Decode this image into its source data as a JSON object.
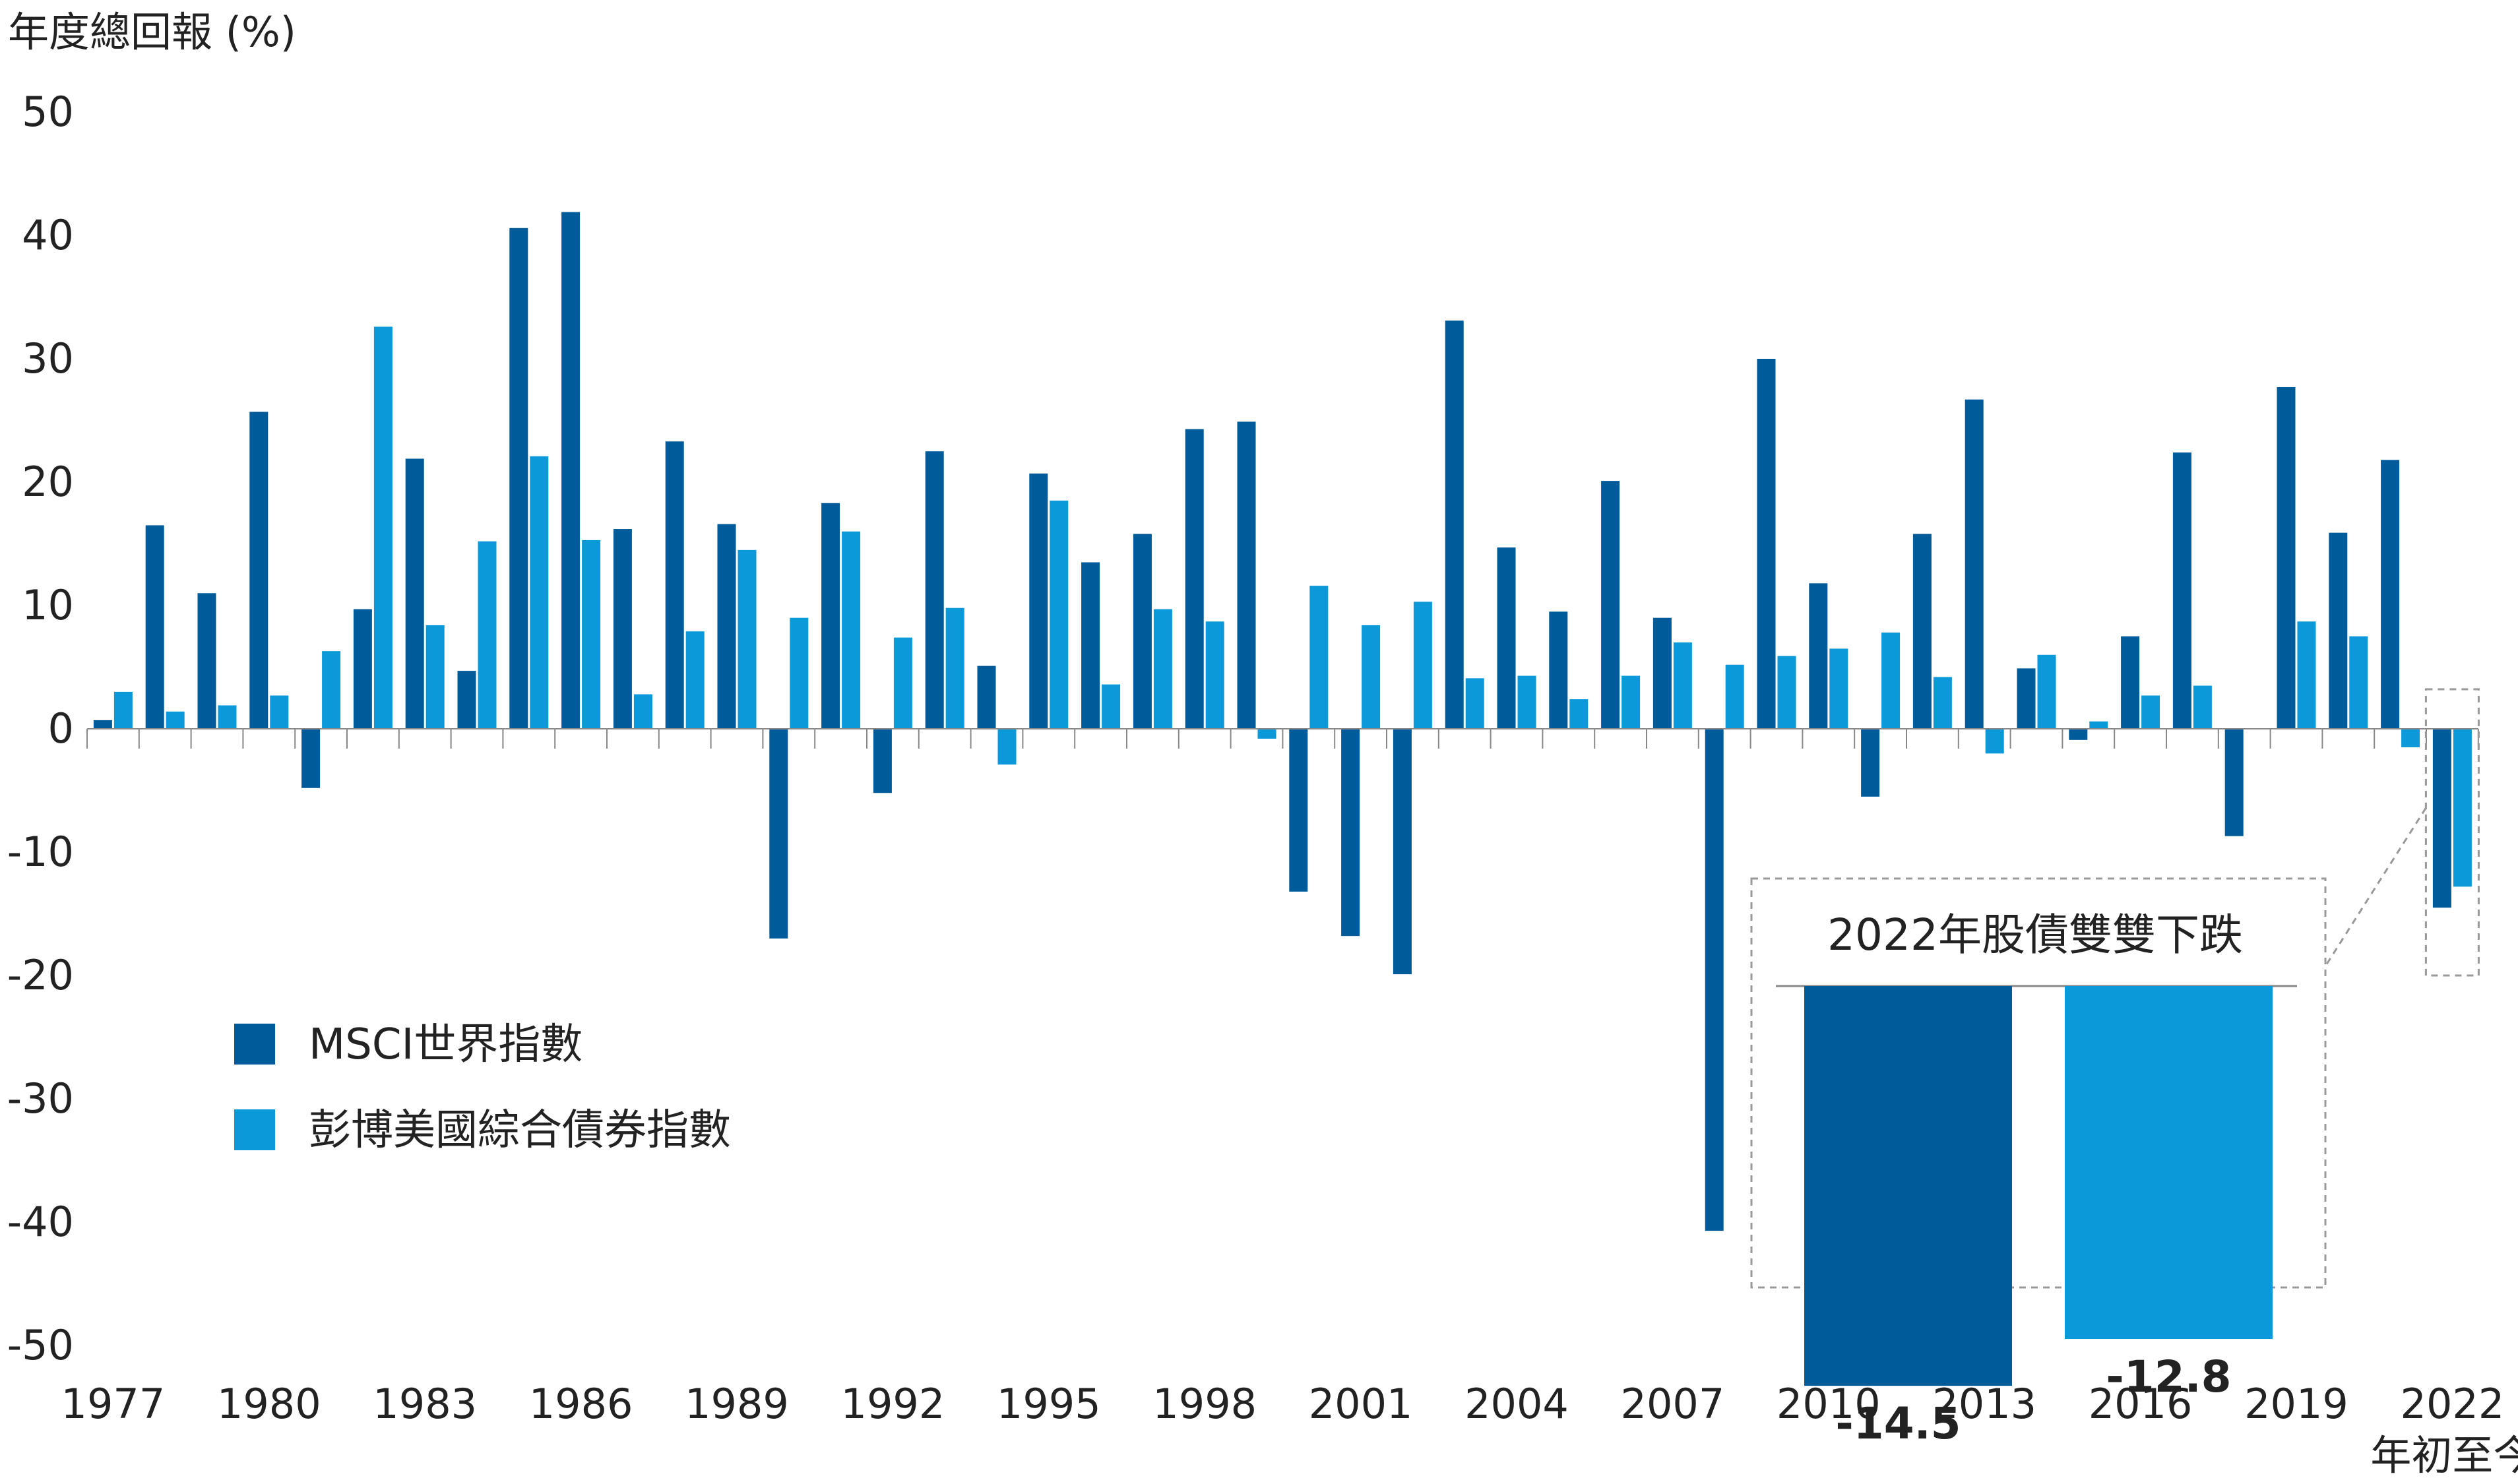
{
  "chart_data": {
    "type": "bar",
    "ylabel": "年度總回報 (%)",
    "ylim": [
      -50,
      50
    ],
    "yticks": [
      "50",
      "40",
      "30",
      "20",
      "10",
      "0",
      "-10",
      "-20",
      "-30",
      "-40",
      "-50"
    ],
    "x_tick_labels": [
      "1977",
      "1980",
      "1983",
      "1986",
      "1989",
      "1992",
      "1995",
      "1998",
      "2001",
      "2004",
      "2007",
      "2010",
      "2013",
      "2016",
      "2019",
      "2022"
    ],
    "ytd_label": "年初至今",
    "categories": [
      "1977",
      "1978",
      "1979",
      "1980",
      "1981",
      "1982",
      "1983",
      "1984",
      "1985",
      "1986",
      "1987",
      "1988",
      "1989",
      "1990",
      "1991",
      "1992",
      "1993",
      "1994",
      "1995",
      "1996",
      "1997",
      "1998",
      "1999",
      "2000",
      "2001",
      "2002",
      "2003",
      "2004",
      "2005",
      "2006",
      "2007",
      "2008",
      "2009",
      "2010",
      "2011",
      "2012",
      "2013",
      "2014",
      "2015",
      "2016",
      "2017",
      "2018",
      "2019",
      "2020",
      "2021",
      "2022"
    ],
    "series": [
      {
        "name": "MSCI世界指數",
        "color": "#005b9a",
        "values": [
          0.7,
          16.5,
          11.0,
          25.7,
          -4.8,
          9.7,
          21.9,
          4.7,
          40.6,
          41.9,
          16.2,
          23.3,
          16.6,
          -17.0,
          18.3,
          -5.2,
          22.5,
          5.1,
          20.7,
          13.5,
          15.8,
          24.3,
          24.9,
          -13.2,
          -16.8,
          -19.9,
          33.1,
          14.7,
          9.5,
          20.1,
          9.0,
          -40.7,
          30.0,
          11.8,
          -5.5,
          15.8,
          26.7,
          4.9,
          -0.9,
          7.5,
          22.4,
          -8.7,
          27.7,
          15.9,
          21.8,
          -14.5
        ]
      },
      {
        "name": "彭博美國綜合債券指數",
        "color": "#0b99d9",
        "values": [
          3.0,
          1.4,
          1.9,
          2.7,
          6.3,
          32.6,
          8.4,
          15.2,
          22.1,
          15.3,
          2.8,
          7.9,
          14.5,
          9.0,
          16.0,
          7.4,
          9.8,
          -2.9,
          18.5,
          3.6,
          9.7,
          8.7,
          -0.8,
          11.6,
          8.4,
          10.3,
          4.1,
          4.3,
          2.4,
          4.3,
          7.0,
          5.2,
          5.9,
          6.5,
          7.8,
          4.2,
          -2.0,
          6.0,
          0.6,
          2.7,
          3.5,
          0.0,
          8.7,
          7.5,
          -1.5,
          -12.8
        ]
      }
    ],
    "inset": {
      "title": "2022年股債雙雙下跌",
      "bars": [
        {
          "series": "MSCI世界指數",
          "value": -14.5,
          "label": "-14.5"
        },
        {
          "series": "彭博美國綜合債券指數",
          "value": -12.8,
          "label": "-12.8"
        }
      ]
    },
    "legend_position": "left-middle",
    "grid": false
  }
}
